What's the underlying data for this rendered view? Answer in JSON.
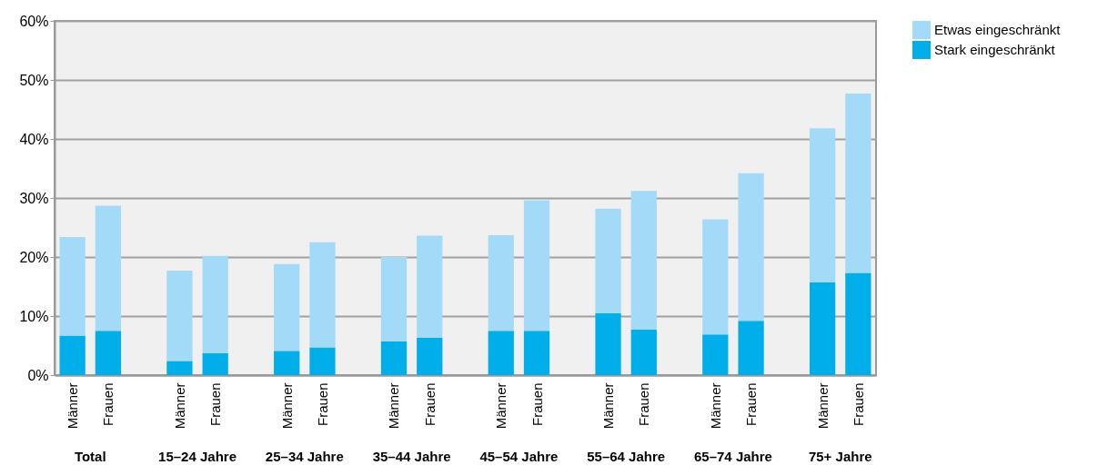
{
  "chart_data": {
    "type": "bar",
    "stacked": true,
    "categories": [
      "Männer",
      "Frauen",
      "Männer",
      "Frauen",
      "Männer",
      "Frauen",
      "Männer",
      "Frauen",
      "Männer",
      "Frauen",
      "Männer",
      "Frauen",
      "Männer",
      "Frauen",
      "Männer",
      "Frauen"
    ],
    "annotations": [
      "Total",
      "15–24 Jahre",
      "25–34 Jahre",
      "35–44 Jahre",
      "45–54 Jahre",
      "55–64 Jahre",
      "65–74 Jahre",
      "75+ Jahre"
    ],
    "series": [
      {
        "name": "Stark eingeschränkt",
        "color": "#00aeea",
        "values": [
          6.7,
          7.5,
          2.4,
          3.7,
          4.1,
          4.7,
          5.7,
          6.3,
          7.5,
          7.5,
          10.5,
          7.7,
          6.9,
          9.2,
          15.7,
          17.3
        ]
      },
      {
        "name": "Etwas eingeschränkt",
        "color": "#a3daf7",
        "values": [
          16.7,
          21.2,
          15.3,
          16.5,
          14.7,
          17.8,
          14.3,
          17.3,
          16.2,
          22.1,
          17.7,
          23.5,
          19.5,
          25.0,
          26.1,
          30.4
        ]
      }
    ],
    "ylim": [
      0,
      60
    ],
    "yticks": [
      {
        "value": 0,
        "label": "0%"
      },
      {
        "value": 10,
        "label": "10%"
      },
      {
        "value": 20,
        "label": "20%"
      },
      {
        "value": 30,
        "label": "30%"
      },
      {
        "value": 40,
        "label": "40%"
      },
      {
        "value": 50,
        "label": "50%"
      },
      {
        "value": 60,
        "label": "60%"
      }
    ],
    "grid": "y",
    "legend": "top right"
  }
}
